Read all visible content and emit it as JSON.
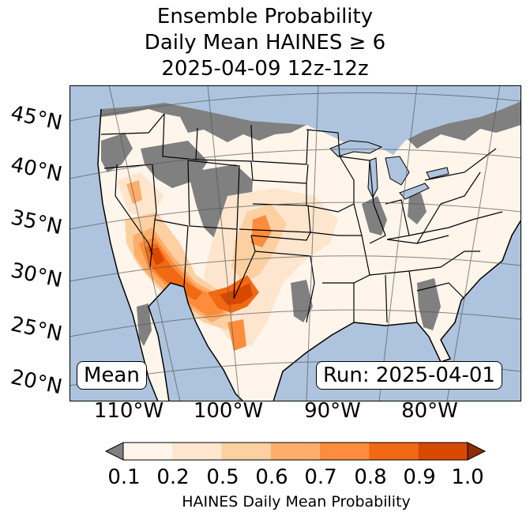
{
  "title": {
    "line1": "Ensemble Probability",
    "line2": "Daily Mean HAINES ≥ 6",
    "line3": "2025-04-09 12z-12z"
  },
  "map": {
    "latitude_labels": [
      "45°N",
      "40°N",
      "35°N",
      "30°N",
      "25°N",
      "20°N"
    ],
    "longitude_labels": [
      "110°W",
      "100°W",
      "90°W",
      "80°W"
    ],
    "colors": {
      "ocean": "#aec4de",
      "below_threshold": "#808080",
      "lakes": "#aec4de"
    }
  },
  "annotations": {
    "left_box": "Mean",
    "right_box": "Run: 2025-04-01"
  },
  "colorbar": {
    "label": "HAINES Daily Mean Probability",
    "ticks": [
      "0.1",
      "0.2",
      "0.5",
      "0.6",
      "0.7",
      "0.8",
      "0.9",
      "1.0"
    ],
    "colors": [
      "#fff5eb",
      "#fee6ce",
      "#fdd0a2",
      "#fdae6b",
      "#fd8d3c",
      "#f16913",
      "#d94801"
    ],
    "under_color": "#808080",
    "over_color": "#8c2d04"
  }
}
